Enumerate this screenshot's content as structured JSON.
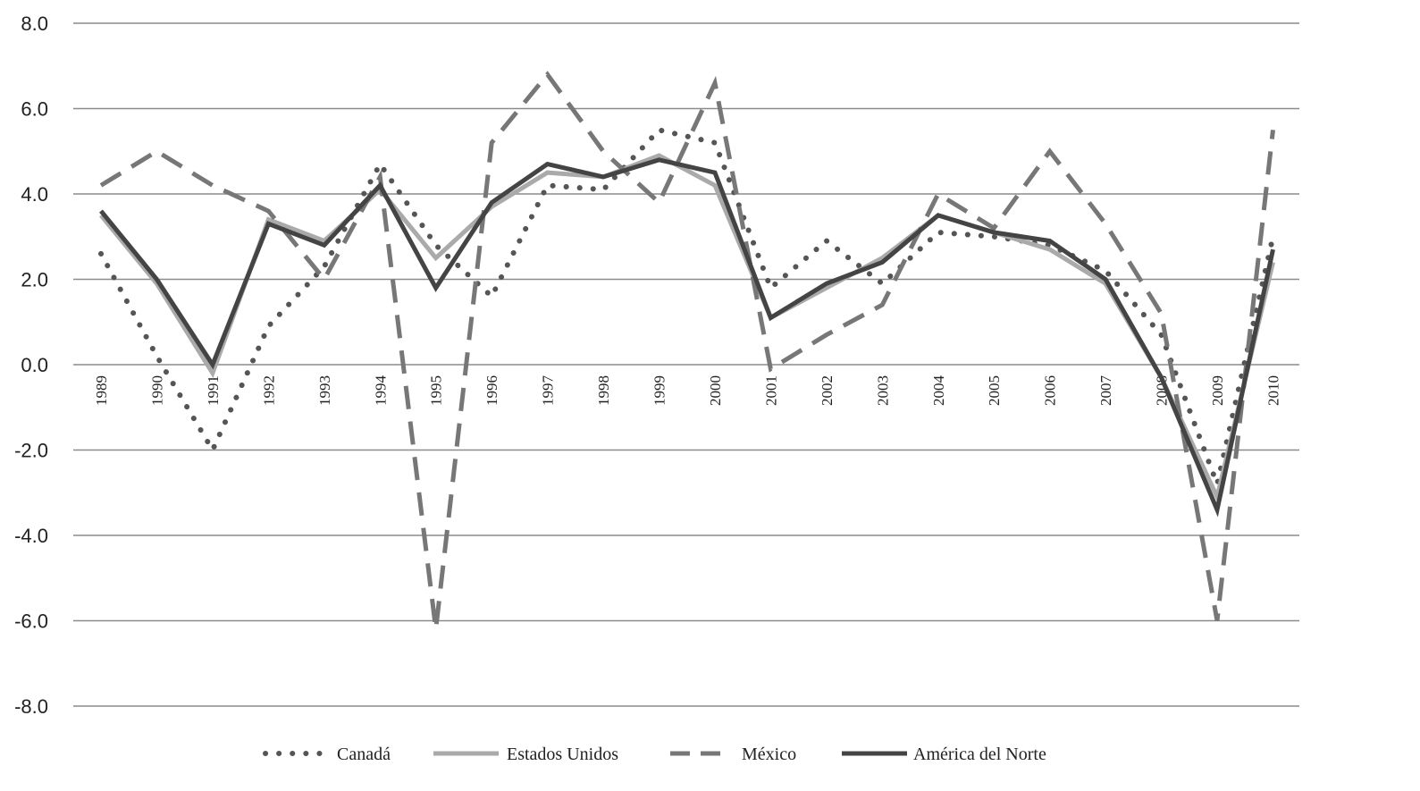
{
  "chart_data": {
    "type": "line",
    "title": "",
    "xlabel": "",
    "ylabel": "",
    "ylim": [
      -8,
      8
    ],
    "yticks": [
      "8.0",
      "6.0",
      "4.0",
      "2.0",
      "0.0",
      "-2.0",
      "-4.0",
      "-6.0",
      "-8.0"
    ],
    "grid": true,
    "legend_position": "bottom",
    "categories": [
      "1989",
      "1990",
      "1991",
      "1992",
      "1993",
      "1994",
      "1995",
      "1996",
      "1997",
      "1998",
      "1999",
      "2000",
      "2001",
      "2002",
      "2003",
      "2004",
      "2005",
      "2006",
      "2007",
      "2008",
      "2009",
      "2010"
    ],
    "series": [
      {
        "name": "Canadá",
        "style": "dotted",
        "color": "#555555",
        "values": [
          2.6,
          0.2,
          -2.0,
          0.9,
          2.3,
          4.7,
          2.8,
          1.6,
          4.2,
          4.1,
          5.5,
          5.2,
          1.8,
          2.9,
          1.9,
          3.1,
          3.0,
          2.8,
          2.2,
          0.7,
          -2.8,
          3.0
        ]
      },
      {
        "name": "Estados Unidos",
        "style": "solid",
        "color": "#aaaaaa",
        "values": [
          3.5,
          1.9,
          -0.2,
          3.4,
          2.9,
          4.1,
          2.5,
          3.7,
          4.5,
          4.4,
          4.9,
          4.2,
          1.1,
          1.8,
          2.5,
          3.5,
          3.1,
          2.7,
          1.9,
          -0.3,
          -3.1,
          2.4
        ]
      },
      {
        "name": "México",
        "style": "dashed",
        "color": "#777777",
        "values": [
          4.2,
          5.0,
          4.2,
          3.6,
          2.0,
          4.4,
          -6.2,
          5.2,
          6.8,
          5.0,
          3.8,
          6.6,
          -0.1,
          0.7,
          1.4,
          4.0,
          3.2,
          5.0,
          3.3,
          1.2,
          -6.0,
          5.5
        ]
      },
      {
        "name": "América del Norte",
        "style": "solid-thick",
        "color": "#444444",
        "values": [
          3.6,
          2.0,
          0.0,
          3.3,
          2.8,
          4.2,
          1.8,
          3.8,
          4.7,
          4.4,
          4.8,
          4.5,
          1.1,
          1.9,
          2.4,
          3.5,
          3.1,
          2.9,
          2.0,
          -0.3,
          -3.4,
          2.7
        ]
      }
    ]
  }
}
